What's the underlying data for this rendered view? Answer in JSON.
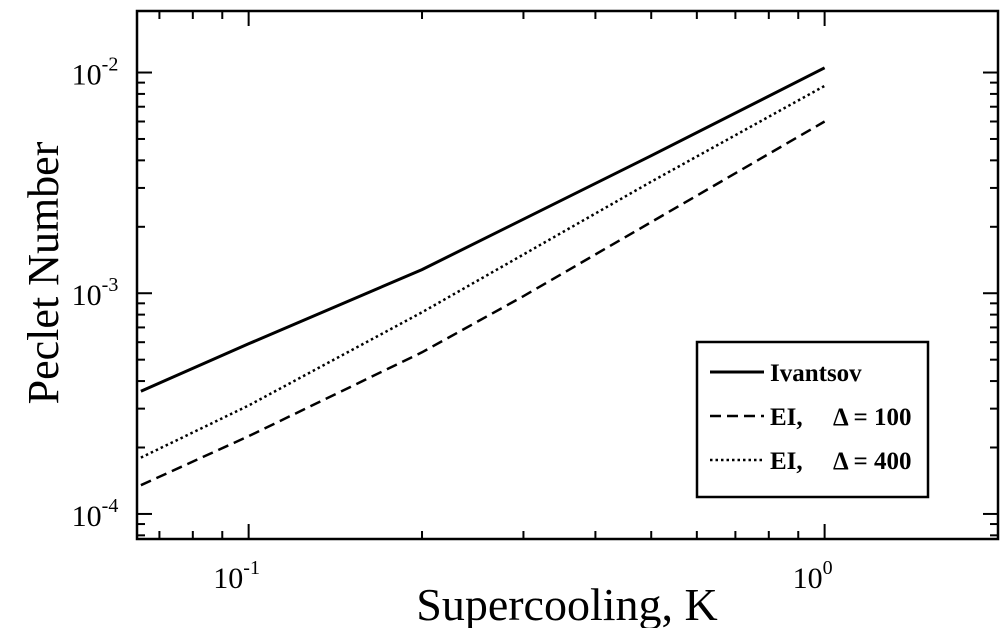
{
  "chart_data": {
    "type": "line",
    "xlabel": "Supercooling, K",
    "ylabel": "Peclet Number",
    "xscale": "log",
    "yscale": "log",
    "xlim": [
      0.064,
      2.0
    ],
    "ylim": [
      7.7e-05,
      0.019
    ],
    "x_ticks": [
      {
        "value": 0.1,
        "base": "10",
        "exp": "-1"
      },
      {
        "value": 1.0,
        "base": "10",
        "exp": "0"
      }
    ],
    "y_ticks": [
      {
        "value": 0.0001,
        "base": "10",
        "exp": "-4"
      },
      {
        "value": 0.001,
        "base": "10",
        "exp": "-3"
      },
      {
        "value": 0.01,
        "base": "10",
        "exp": "-2"
      }
    ],
    "grid": false,
    "legend_position": "bottom-right",
    "series": [
      {
        "name": "Ivantsov",
        "style": "solid",
        "color": "#000000",
        "x": [
          0.065,
          0.1,
          0.2,
          0.5,
          1.0
        ],
        "y": [
          0.00036,
          0.00059,
          0.00128,
          0.0042,
          0.0105
        ]
      },
      {
        "name_text": "EI,",
        "name_symbol": "Δ = 100",
        "style": "dashed",
        "color": "#000000",
        "x": [
          0.065,
          0.1,
          0.2,
          0.3,
          0.5,
          1.0
        ],
        "y": [
          0.000135,
          0.000225,
          0.00054,
          0.00097,
          0.0021,
          0.006
        ]
      },
      {
        "name_text": "EI,",
        "name_symbol": "Δ = 400",
        "style": "dotted",
        "color": "#000000",
        "x": [
          0.065,
          0.1,
          0.2,
          0.5,
          1.0
        ],
        "y": [
          0.00018,
          0.00031,
          0.00082,
          0.0032,
          0.0087
        ]
      }
    ]
  }
}
